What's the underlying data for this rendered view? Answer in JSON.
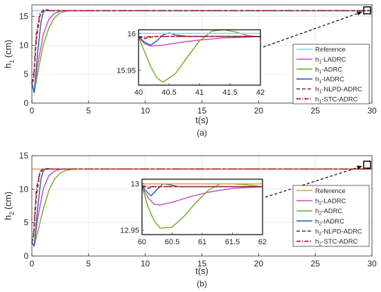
{
  "figure": {
    "colors": {
      "reference": "#7fdcf0",
      "ladrc": "#c94fc0",
      "adrc": "#7aad2e",
      "iadrc": "#2f5fb5",
      "nlpd": "#8b1a1a",
      "stc": "#a0162b",
      "reference_b": "#e0a04e"
    }
  },
  "chart_data": [
    {
      "type": "line",
      "xlabel": "t(s)",
      "ylabel": "h",
      "ylabel_sub": "1",
      "ylabel_unit": "(cm)",
      "caption": "(a)",
      "xlim": [
        0,
        30
      ],
      "ylim": [
        0,
        17
      ],
      "xticks": [
        0,
        5,
        10,
        15,
        20,
        25,
        30
      ],
      "yticks": [
        0,
        5,
        10,
        15
      ],
      "grid": true,
      "legend_position": "right",
      "setpoint": 16,
      "series": [
        {
          "name": "Reference",
          "label_main": "Reference",
          "label_sub": "",
          "label_rest": "",
          "color_key": "reference",
          "dash": "solid",
          "x": [
            0,
            30
          ],
          "y": [
            16,
            16
          ]
        },
        {
          "name": "h1-LADRC",
          "label_main": "h",
          "label_sub": "1",
          "label_rest": "-LADRC",
          "color_key": "ladrc",
          "dash": "solid",
          "x": [
            0,
            0.2,
            0.5,
            1.0,
            1.5,
            2.0,
            2.5,
            3.0,
            30
          ],
          "y": [
            3.5,
            1.8,
            6.5,
            11.8,
            14.5,
            15.5,
            15.9,
            16.0,
            16.0
          ]
        },
        {
          "name": "h1-ADRC",
          "label_main": "h",
          "label_sub": "1",
          "label_rest": "-ADRC",
          "color_key": "adrc",
          "dash": "solid",
          "x": [
            0,
            0.2,
            0.5,
            1.0,
            1.5,
            2.0,
            2.5,
            3.0,
            3.5,
            30
          ],
          "y": [
            3.5,
            1.8,
            5.0,
            10.0,
            13.0,
            14.8,
            15.6,
            15.9,
            16.0,
            16.0
          ]
        },
        {
          "name": "h1-IADRC",
          "label_main": "h",
          "label_sub": "1",
          "label_rest": "-IADRC",
          "color_key": "iadrc",
          "dash": "solid",
          "x": [
            0,
            0.2,
            0.5,
            0.8,
            1.0,
            1.3,
            1.6,
            2.0,
            30
          ],
          "y": [
            3.5,
            1.8,
            8.5,
            14.0,
            15.7,
            16.2,
            16.0,
            16.0,
            16.0
          ]
        },
        {
          "name": "h1-NLPD-ADRC",
          "label_main": "h",
          "label_sub": "1",
          "label_rest": "-NLPD-ADRC",
          "color_key": "nlpd",
          "dash": "dashed",
          "x": [
            0,
            0.15,
            0.4,
            0.7,
            1.0,
            1.3,
            30
          ],
          "y": [
            3.5,
            4.0,
            11.0,
            15.0,
            16.1,
            16.0,
            16.0
          ]
        },
        {
          "name": "h1-STC-ADRC",
          "label_main": "h",
          "label_sub": "1",
          "label_rest": "-STC-ADRC",
          "color_key": "stc",
          "dash": "dashdot",
          "x": [
            0,
            0.15,
            0.4,
            0.7,
            1.0,
            1.3,
            30
          ],
          "y": [
            3.5,
            4.5,
            12.0,
            15.5,
            16.0,
            16.0,
            16.0
          ]
        }
      ],
      "inset": {
        "xlim": [
          40,
          42
        ],
        "ylim": [
          15.93,
          16.005
        ],
        "xticks": [
          40,
          40.5,
          41,
          41.5,
          42
        ],
        "xtick_labels": [
          "40",
          "40.5",
          "41",
          "41.5",
          "42"
        ],
        "yticks": [
          16,
          15.95
        ],
        "ytick_labels": [
          "16",
          "15.95"
        ],
        "series": [
          {
            "color_key": "reference",
            "dash": "solid",
            "x": [
              40,
              42
            ],
            "y": [
              16,
              16
            ]
          },
          {
            "color_key": "ladrc",
            "dash": "solid",
            "x": [
              40,
              40.1,
              40.2,
              40.4,
              40.7,
              41.0,
              41.4,
              41.8,
              42.0
            ],
            "y": [
              15.995,
              15.986,
              15.983,
              15.984,
              15.988,
              15.991,
              15.994,
              15.995,
              15.996
            ]
          },
          {
            "color_key": "adrc",
            "dash": "solid",
            "x": [
              40,
              40.1,
              40.2,
              40.3,
              40.4,
              40.6,
              40.8,
              41.0,
              41.2,
              41.4,
              41.6,
              41.8,
              42.0
            ],
            "y": [
              15.995,
              15.975,
              15.955,
              15.94,
              15.934,
              15.945,
              15.968,
              15.99,
              16.003,
              16.005,
              16.002,
              15.997,
              15.995
            ]
          },
          {
            "color_key": "iadrc",
            "dash": "solid",
            "x": [
              40,
              40.1,
              40.2,
              40.3,
              40.4,
              40.5,
              40.6,
              40.8,
              42.0
            ],
            "y": [
              15.995,
              15.988,
              15.984,
              15.99,
              15.998,
              16.001,
              15.998,
              15.996,
              15.996
            ]
          },
          {
            "color_key": "nlpd",
            "dash": "dashed",
            "x": [
              40,
              40.1,
              40.2,
              40.3,
              40.6,
              42.0
            ],
            "y": [
              15.995,
              15.993,
              15.995,
              15.996,
              15.996,
              15.996
            ]
          },
          {
            "color_key": "stc",
            "dash": "dashdot",
            "x": [
              40,
              40.1,
              40.2,
              40.3,
              40.6,
              42.0
            ],
            "y": [
              15.996,
              15.995,
              15.996,
              15.996,
              15.996,
              15.996
            ]
          }
        ]
      }
    },
    {
      "type": "line",
      "xlabel": "t(s)",
      "ylabel": "h",
      "ylabel_sub": "2",
      "ylabel_unit": "(cm)",
      "caption": "(b)",
      "xlim": [
        0,
        30
      ],
      "ylim": [
        0,
        15
      ],
      "xticks": [
        0,
        5,
        10,
        15,
        20,
        25,
        30
      ],
      "yticks": [
        0,
        5,
        10,
        15
      ],
      "grid": true,
      "legend_position": "right",
      "setpoint": 13,
      "series": [
        {
          "name": "Reference",
          "label_main": "Reference",
          "label_sub": "",
          "label_rest": "",
          "color_key": "reference_b",
          "dash": "solid",
          "x": [
            0,
            30
          ],
          "y": [
            13,
            13
          ]
        },
        {
          "name": "h2-LADRC",
          "label_main": "h",
          "label_sub": "2",
          "label_rest": "-LADRC",
          "color_key": "ladrc",
          "dash": "solid",
          "x": [
            0,
            0.2,
            0.5,
            1.0,
            1.5,
            2.0,
            2.5,
            3.0,
            30
          ],
          "y": [
            2.0,
            1.5,
            5.5,
            10.0,
            12.0,
            12.7,
            12.95,
            13.0,
            13.0
          ]
        },
        {
          "name": "h2-ADRC",
          "label_main": "h",
          "label_sub": "2",
          "label_rest": "-ADRC",
          "color_key": "adrc",
          "dash": "solid",
          "x": [
            0,
            0.2,
            0.5,
            1.0,
            1.5,
            2.0,
            2.5,
            3.0,
            3.5,
            4.0,
            30
          ],
          "y": [
            2.0,
            1.5,
            3.5,
            7.0,
            9.8,
            11.5,
            12.4,
            12.8,
            12.95,
            13.0,
            13.0
          ]
        },
        {
          "name": "h2-IADRC",
          "label_main": "h",
          "label_sub": "2",
          "label_rest": "-IADRC",
          "color_key": "iadrc",
          "dash": "solid",
          "x": [
            0,
            0.2,
            0.5,
            0.8,
            1.0,
            1.3,
            1.6,
            2.0,
            30
          ],
          "y": [
            2.0,
            1.5,
            7.0,
            11.5,
            12.7,
            13.1,
            13.0,
            13.0,
            13.0
          ]
        },
        {
          "name": "h2-NLPD-ADRC",
          "label_main": "h",
          "label_sub": "2",
          "label_rest": "-NLPD-ADRC",
          "color_key": "nlpd",
          "dash": "dashed",
          "x": [
            0,
            0.15,
            0.4,
            0.7,
            1.0,
            1.3,
            30
          ],
          "y": [
            2.0,
            3.0,
            9.0,
            12.3,
            13.0,
            13.0,
            13.0
          ]
        },
        {
          "name": "h2-STC-ADRC",
          "label_main": "h",
          "label_sub": "2",
          "label_rest": "-STC-ADRC",
          "color_key": "stc",
          "dash": "dashdot",
          "x": [
            0,
            0.15,
            0.4,
            0.7,
            1.0,
            1.3,
            30
          ],
          "y": [
            2.0,
            3.5,
            10.0,
            12.6,
            13.0,
            13.0,
            13.0
          ]
        }
      ],
      "inset": {
        "xlim": [
          60,
          62
        ],
        "ylim": [
          12.945,
          13.005
        ],
        "xticks": [
          60,
          60.5,
          61,
          61.5,
          62
        ],
        "xtick_labels": [
          "60",
          "60.5",
          "61",
          "61.5",
          "62"
        ],
        "yticks": [
          13,
          12.95
        ],
        "ytick_labels": [
          "13",
          "12.95"
        ],
        "series": [
          {
            "color_key": "reference_b",
            "dash": "solid",
            "x": [
              60,
              62
            ],
            "y": [
              13,
              13
            ]
          },
          {
            "color_key": "ladrc",
            "dash": "solid",
            "x": [
              60,
              60.1,
              60.2,
              60.3,
              60.5,
              60.8,
              61.1,
              61.5,
              62.0
            ],
            "y": [
              12.997,
              12.985,
              12.978,
              12.977,
              12.98,
              12.986,
              12.991,
              12.995,
              12.997
            ]
          },
          {
            "color_key": "adrc",
            "dash": "solid",
            "x": [
              60,
              60.1,
              60.2,
              60.3,
              60.5,
              60.7,
              60.9,
              61.1,
              61.3,
              61.5,
              61.7,
              62.0
            ],
            "y": [
              12.997,
              12.975,
              12.96,
              12.952,
              12.953,
              12.965,
              12.98,
              12.993,
              13.0,
              13.0,
              12.999,
              12.997
            ]
          },
          {
            "color_key": "iadrc",
            "dash": "solid",
            "x": [
              60,
              60.1,
              60.15,
              60.25,
              60.35,
              60.45,
              60.6,
              60.9,
              62.0
            ],
            "y": [
              12.997,
              12.99,
              12.987,
              12.994,
              13.0,
              12.999,
              12.997,
              12.997,
              12.997
            ]
          },
          {
            "color_key": "nlpd",
            "dash": "dashed",
            "x": [
              60,
              60.1,
              60.2,
              60.3,
              60.6,
              62.0
            ],
            "y": [
              12.997,
              12.995,
              12.997,
              12.997,
              12.997,
              12.997
            ]
          },
          {
            "color_key": "stc",
            "dash": "dashdot",
            "x": [
              60,
              60.1,
              60.2,
              60.3,
              60.6,
              62.0
            ],
            "y": [
              12.998,
              12.997,
              12.997,
              12.997,
              12.997,
              12.997
            ]
          }
        ]
      }
    }
  ]
}
